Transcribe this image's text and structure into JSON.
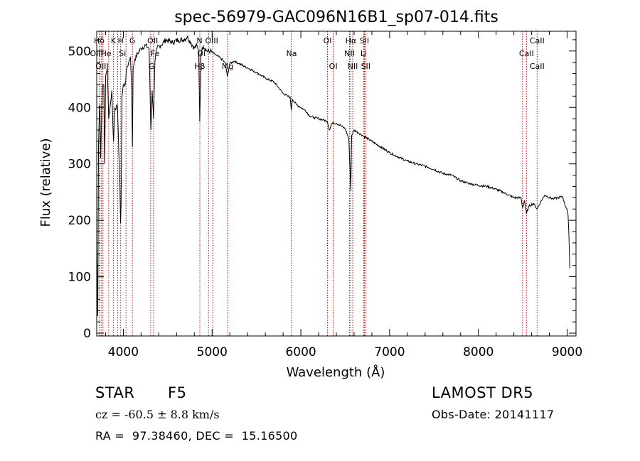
{
  "chart_data": {
    "type": "line",
    "title": "spec-56979-GAC096N16B1_sp07-014.fits",
    "xlabel": "Wavelength (Å)",
    "ylabel": "Flux (relative)",
    "xlim": [
      3700,
      9100
    ],
    "ylim": [
      -5,
      535
    ],
    "xticks": [
      4000,
      5000,
      6000,
      7000,
      8000,
      9000
    ],
    "yticks": [
      0,
      100,
      200,
      300,
      400,
      500
    ],
    "grid": false,
    "line_color": "#000000",
    "marker_line_color": "#cc0000",
    "series": [
      {
        "x": [
          3700,
          3712,
          3720,
          3730,
          3735,
          3745,
          3750,
          3760,
          3770,
          3780,
          3790,
          3800,
          3820,
          3835,
          3850,
          3870,
          3889,
          3905,
          3920,
          3935,
          3950,
          3960,
          3968,
          3975,
          3985,
          4000,
          4020,
          4040,
          4060,
          4080,
          4095,
          4102,
          4110,
          4130,
          4160,
          4200,
          4250,
          4290,
          4310,
          4325,
          4340,
          4355,
          4380,
          4420,
          4480,
          4550,
          4620,
          4680,
          4720,
          4760,
          4800,
          4830,
          4850,
          4861,
          4875,
          4900,
          4940,
          4980,
          5050,
          5100,
          5150,
          5172,
          5200,
          5250,
          5300,
          5400,
          5500,
          5600,
          5700,
          5800,
          5850,
          5880,
          5892,
          5905,
          5950,
          6000,
          6050,
          6100,
          6150,
          6200,
          6250,
          6300,
          6320,
          6350,
          6400,
          6450,
          6500,
          6540,
          6555,
          6563,
          6572,
          6600,
          6650,
          6700,
          6800,
          6900,
          7000,
          7100,
          7200,
          7300,
          7400,
          7500,
          7600,
          7700,
          7800,
          7900,
          8000,
          8100,
          8200,
          8300,
          8400,
          8480,
          8498,
          8520,
          8542,
          8570,
          8620,
          8662,
          8700,
          8750,
          8800,
          8850,
          8900,
          8950,
          8980,
          9000,
          9010,
          9020,
          9030
        ],
        "y": [
          160,
          30,
          330,
          390,
          405,
          310,
          345,
          420,
          440,
          440,
          300,
          455,
          470,
          380,
          400,
          430,
          340,
          400,
          400,
          400,
          315,
          270,
          195,
          230,
          420,
          440,
          440,
          470,
          480,
          490,
          430,
          330,
          470,
          485,
          495,
          505,
          510,
          505,
          360,
          430,
          380,
          480,
          505,
          510,
          520,
          515,
          520,
          520,
          525,
          515,
          505,
          510,
          495,
          375,
          495,
          510,
          500,
          500,
          492,
          487,
          478,
          455,
          478,
          482,
          478,
          470,
          462,
          452,
          445,
          425,
          420,
          418,
          395,
          415,
          405,
          400,
          395,
          385,
          382,
          380,
          378,
          375,
          360,
          372,
          372,
          368,
          362,
          345,
          290,
          252,
          350,
          360,
          355,
          350,
          340,
          330,
          320,
          312,
          305,
          300,
          296,
          290,
          283,
          280,
          270,
          265,
          262,
          260,
          255,
          248,
          240,
          240,
          222,
          235,
          212,
          225,
          230,
          220,
          232,
          245,
          240,
          238,
          240,
          242,
          225,
          220,
          210,
          175,
          115
        ]
      }
    ],
    "line_markers": [
      {
        "label": "Hδ",
        "x": 3728,
        "row": 0
      },
      {
        "label": "K",
        "x": 3888,
        "row": 0
      },
      {
        "label": "H",
        "x": 3970,
        "row": 0
      },
      {
        "label": "G",
        "x": 4102,
        "row": 0
      },
      {
        "label": "OII",
        "x": 4330,
        "row": 0
      },
      {
        "label": "N",
        "x": 4858,
        "row": 0
      },
      {
        "label": "OIII",
        "x": 4995,
        "row": 0
      },
      {
        "label": "OI",
        "x": 6300,
        "row": 0
      },
      {
        "label": "Hα",
        "x": 6563,
        "row": 0
      },
      {
        "label": "SII",
        "x": 6716,
        "row": 0
      },
      {
        "label": "CaII",
        "x": 8662,
        "row": 0
      },
      {
        "label": "OIIHe",
        "x": 3745,
        "row": 1
      },
      {
        "label": "Si",
        "x": 3990,
        "row": 1
      },
      {
        "label": "Fe",
        "x": 4358,
        "row": 1
      },
      {
        "label": "OI",
        "x": 4880,
        "row": 1
      },
      {
        "label": "Na",
        "x": 5895,
        "row": 1
      },
      {
        "label": "NII",
        "x": 6548,
        "row": 1
      },
      {
        "label": "Li",
        "x": 6708,
        "row": 1
      },
      {
        "label": "CaII",
        "x": 8542,
        "row": 1
      },
      {
        "label": "OIII",
        "x": 3760,
        "row": 2
      },
      {
        "label": "G",
        "x": 4318,
        "row": 2
      },
      {
        "label": "Hβ",
        "x": 4861,
        "row": 2
      },
      {
        "label": "Mg",
        "x": 5175,
        "row": 2
      },
      {
        "label": "OI",
        "x": 6365,
        "row": 2
      },
      {
        "label": "NII",
        "x": 6584,
        "row": 2
      },
      {
        "label": "SII",
        "x": 6731,
        "row": 2
      },
      {
        "label": "CaII",
        "x": 8662,
        "row": 2
      }
    ],
    "marker_lines_x": [
      3728,
      3750,
      3770,
      3835,
      3889,
      3935,
      3970,
      4030,
      4102,
      4308,
      4340,
      4862,
      4960,
      5008,
      5175,
      5892,
      6300,
      6364,
      6548,
      6563,
      6584,
      6708,
      6716,
      6731,
      8498,
      8542,
      8662
    ]
  },
  "info": {
    "object_class": "STAR",
    "subclass": "F5",
    "survey": "LAMOST DR5",
    "cz": "cz = -60.5 ± 8.8 km/s",
    "obs_date": "Obs-Date: 20141117",
    "coords": "RA =  97.38460, DEC =  15.16500"
  }
}
